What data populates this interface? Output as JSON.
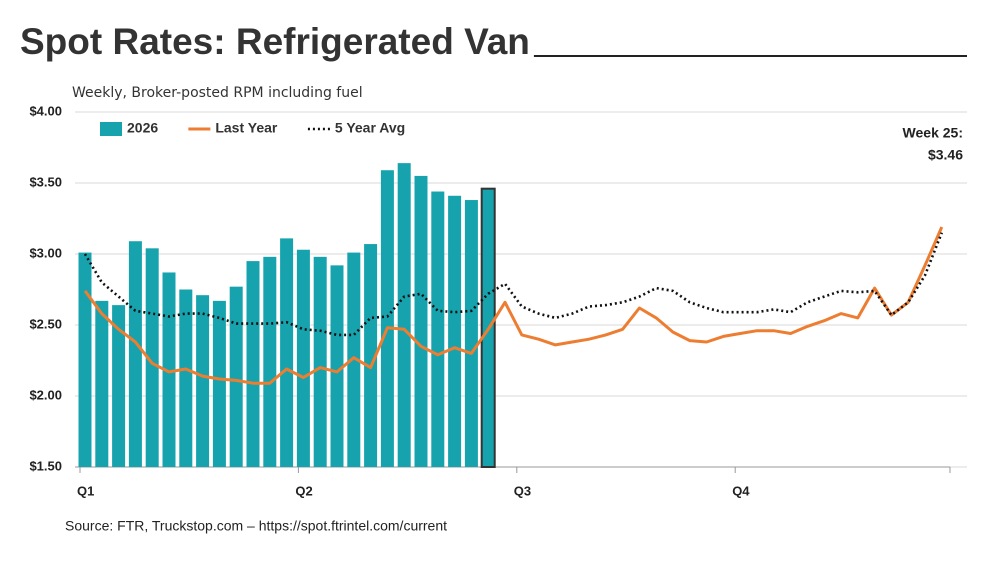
{
  "chart_data": {
    "type": "combo",
    "title": "Spot Rates: Refrigerated Van",
    "subtitle": "Weekly, Broker-posted RPM including fuel",
    "source": "Source: FTR, Truckstop.com – https://spot.ftrintel.com/current",
    "annotation": [
      "Week 25:",
      "$3.46"
    ],
    "categories": [
      "Q1",
      null,
      null,
      null,
      null,
      null,
      null,
      null,
      null,
      null,
      null,
      null,
      null,
      "Q2",
      null,
      null,
      null,
      null,
      null,
      null,
      null,
      null,
      null,
      null,
      null,
      null,
      "Q3",
      null,
      null,
      null,
      null,
      null,
      null,
      null,
      null,
      null,
      null,
      null,
      null,
      "Q4",
      null,
      null,
      null,
      null,
      null,
      null,
      null,
      null,
      null,
      null,
      null,
      null
    ],
    "series": [
      {
        "name": "2026",
        "type": "bar",
        "color": "#17a3ae",
        "highlight_index": 24,
        "highlight_edgecolor": "#333333",
        "values": [
          3.01,
          2.67,
          2.64,
          3.09,
          3.04,
          2.87,
          2.75,
          2.71,
          2.67,
          2.77,
          2.95,
          2.98,
          3.11,
          3.03,
          2.98,
          2.92,
          3.01,
          3.07,
          3.59,
          3.64,
          3.55,
          3.44,
          3.41,
          3.38,
          3.46,
          null,
          null,
          null,
          null,
          null,
          null,
          null,
          null,
          null,
          null,
          null,
          null,
          null,
          null,
          null,
          null,
          null,
          null,
          null,
          null,
          null,
          null,
          null,
          null,
          null,
          null,
          null
        ]
      },
      {
        "name": "Last Year",
        "type": "line",
        "color": "#ed7d31",
        "values": [
          2.74,
          2.58,
          2.47,
          2.38,
          2.23,
          2.17,
          2.19,
          2.14,
          2.12,
          2.11,
          2.09,
          2.09,
          2.19,
          2.13,
          2.2,
          2.17,
          2.27,
          2.2,
          2.48,
          2.47,
          2.35,
          2.29,
          2.34,
          2.3,
          2.47,
          2.66,
          2.43,
          2.4,
          2.36,
          2.38,
          2.4,
          2.43,
          2.47,
          2.62,
          2.55,
          2.45,
          2.39,
          2.38,
          2.42,
          2.44,
          2.46,
          2.46,
          2.44,
          2.49,
          2.53,
          2.58,
          2.55,
          2.76,
          2.57,
          2.66,
          2.92,
          3.19
        ]
      },
      {
        "name": "5 Year Avg",
        "type": "line",
        "dash": "dotted",
        "color": "#111111",
        "values": [
          3.0,
          2.8,
          2.7,
          2.6,
          2.58,
          2.56,
          2.58,
          2.58,
          2.55,
          2.51,
          2.51,
          2.51,
          2.52,
          2.47,
          2.46,
          2.43,
          2.43,
          2.55,
          2.56,
          2.7,
          2.72,
          2.6,
          2.59,
          2.6,
          2.72,
          2.79,
          2.63,
          2.58,
          2.55,
          2.58,
          2.63,
          2.64,
          2.66,
          2.7,
          2.76,
          2.74,
          2.66,
          2.62,
          2.59,
          2.59,
          2.59,
          2.61,
          2.59,
          2.66,
          2.7,
          2.74,
          2.73,
          2.74,
          2.57,
          2.66,
          2.85,
          3.15
        ]
      }
    ],
    "ylim": [
      1.5,
      4.0
    ],
    "yticks": [
      {
        "value": 1.5,
        "label": "$1.50"
      },
      {
        "value": 2.0,
        "label": "$2.00"
      },
      {
        "value": 2.5,
        "label": "$2.50"
      },
      {
        "value": 3.0,
        "label": "$3.00"
      },
      {
        "value": 3.5,
        "label": "$3.50"
      },
      {
        "value": 4.0,
        "label": "$4.00"
      }
    ],
    "grid": true,
    "legend": "top-left"
  }
}
